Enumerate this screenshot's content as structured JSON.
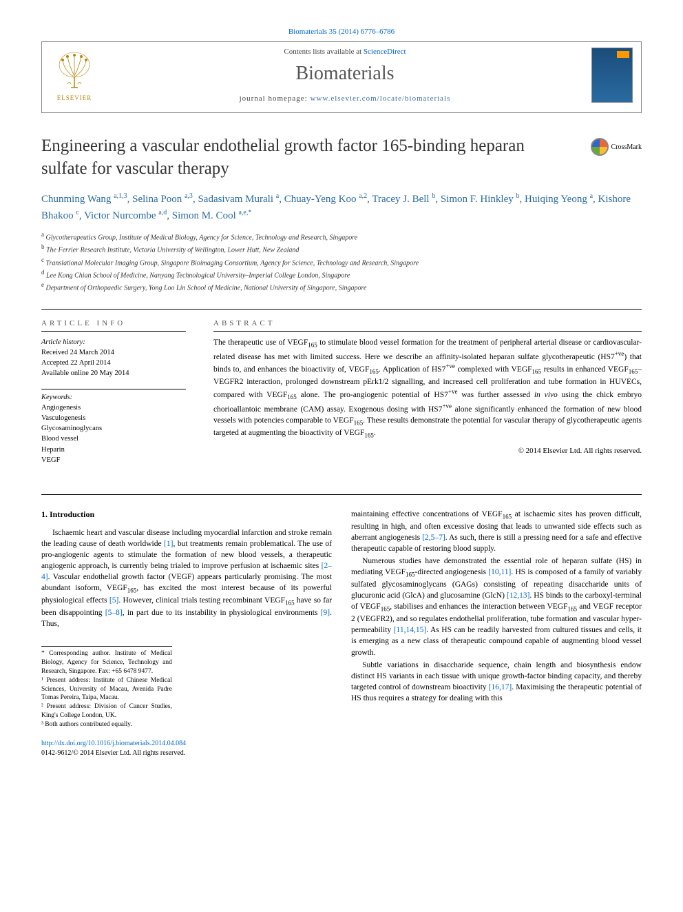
{
  "citation": "Biomaterials 35 (2014) 6776–6786",
  "header": {
    "contents_prefix": "Contents lists available at ",
    "contents_link": "ScienceDirect",
    "journal": "Biomaterials",
    "homepage_prefix": "journal homepage: ",
    "homepage_url": "www.elsevier.com/locate/biomaterials",
    "publisher_label": "ELSEVIER"
  },
  "article": {
    "title": "Engineering a vascular endothelial growth factor 165-binding heparan sulfate for vascular therapy",
    "crossmark_label": "CrossMark",
    "authors_html": "Chunming Wang <sup>a,1,3</sup>, Selina Poon <sup>a,3</sup>, Sadasivam Murali <sup>a</sup>, Chuay-Yeng Koo <sup>a,2</sup>, Tracey J. Bell <sup>b</sup>, Simon F. Hinkley <sup>b</sup>, Huiqing Yeong <sup>a</sup>, Kishore Bhakoo <sup>c</sup>, Victor Nurcombe <sup>a,d</sup>, Simon M. Cool <sup>a,e,*</sup>",
    "affiliations": [
      {
        "sup": "a",
        "text": "Glycotherapeutics Group, Institute of Medical Biology, Agency for Science, Technology and Research, Singapore"
      },
      {
        "sup": "b",
        "text": "The Ferrier Research Institute, Victoria University of Wellington, Lower Hutt, New Zealand"
      },
      {
        "sup": "c",
        "text": "Translational Molecular Imaging Group, Singapore Bioimaging Consortium, Agency for Science, Technology and Research, Singapore"
      },
      {
        "sup": "d",
        "text": "Lee Kong Chian School of Medicine, Nanyang Technological University–Imperial College London, Singapore"
      },
      {
        "sup": "e",
        "text": "Department of Orthopaedic Surgery, Yong Loo Lin School of Medicine, National University of Singapore, Singapore"
      }
    ]
  },
  "info": {
    "heading": "ARTICLE INFO",
    "history_label": "Article history:",
    "received": "Received 24 March 2014",
    "accepted": "Accepted 22 April 2014",
    "online": "Available online 20 May 2014",
    "keywords_label": "Keywords:",
    "keywords": [
      "Angiogenesis",
      "Vasculogenesis",
      "Glycosaminoglycans",
      "Blood vessel",
      "Heparin",
      "VEGF"
    ]
  },
  "abstract": {
    "heading": "ABSTRACT",
    "copyright": "© 2014 Elsevier Ltd. All rights reserved."
  },
  "section1_heading": "1. Introduction",
  "footnotes": {
    "corr": "* Corresponding author. Institute of Medical Biology, Agency for Science, Technology and Research, Singapore. Fax: +65 6478 9477.",
    "n1": "¹ Present address: Institute of Chinese Medical Sciences, University of Macau, Avenida Padre Tomas Pereira, Taipa, Macau.",
    "n2": "² Present address: Division of Cancer Studies, King's College London, UK.",
    "n3": "³ Both authors contributed equally."
  },
  "footer": {
    "doi": "http://dx.doi.org/10.1016/j.biomaterials.2014.04.084",
    "issn_line": "0142-9612/© 2014 Elsevier Ltd. All rights reserved."
  },
  "colors": {
    "link": "#0066cc",
    "author": "#2a6aa0",
    "heading_gray": "#555555"
  }
}
